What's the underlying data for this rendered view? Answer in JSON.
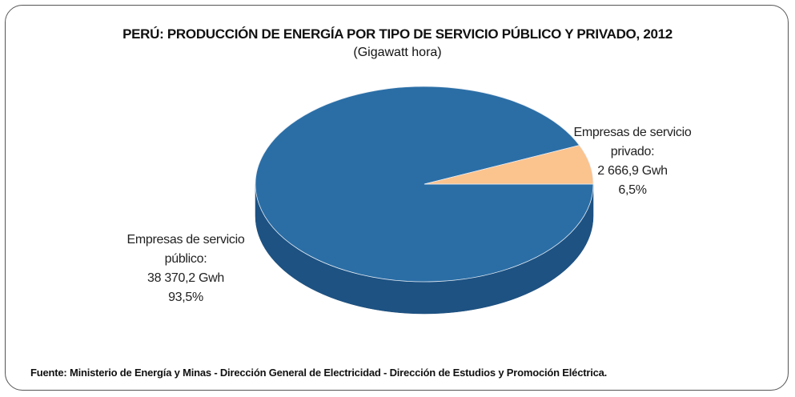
{
  "chart_data": {
    "type": "pie",
    "title": "PERÚ: PRODUCCIÓN DE ENERGÍA POR TIPO DE SERVICIO PÚBLICO Y PRIVADO, 2012",
    "subtitle": "(Gigawatt hora)",
    "categories": [
      "Empresas de servicio público:",
      "Empresas de servicio privado:"
    ],
    "values": [
      93.5,
      6.5
    ],
    "value_labels": [
      "93,5%",
      "6,5%"
    ],
    "amounts": [
      38370.2,
      2666.9
    ],
    "amount_labels": [
      "38 370,2 Gwh",
      "2 666,9 Gwh"
    ],
    "colors": [
      "#2b6ea6",
      "#fbc38e"
    ],
    "source": "Fuente: Ministerio de Energía y Minas - Dirección General de Electricidad - Dirección de Estudios y Promoción Eléctrica."
  }
}
